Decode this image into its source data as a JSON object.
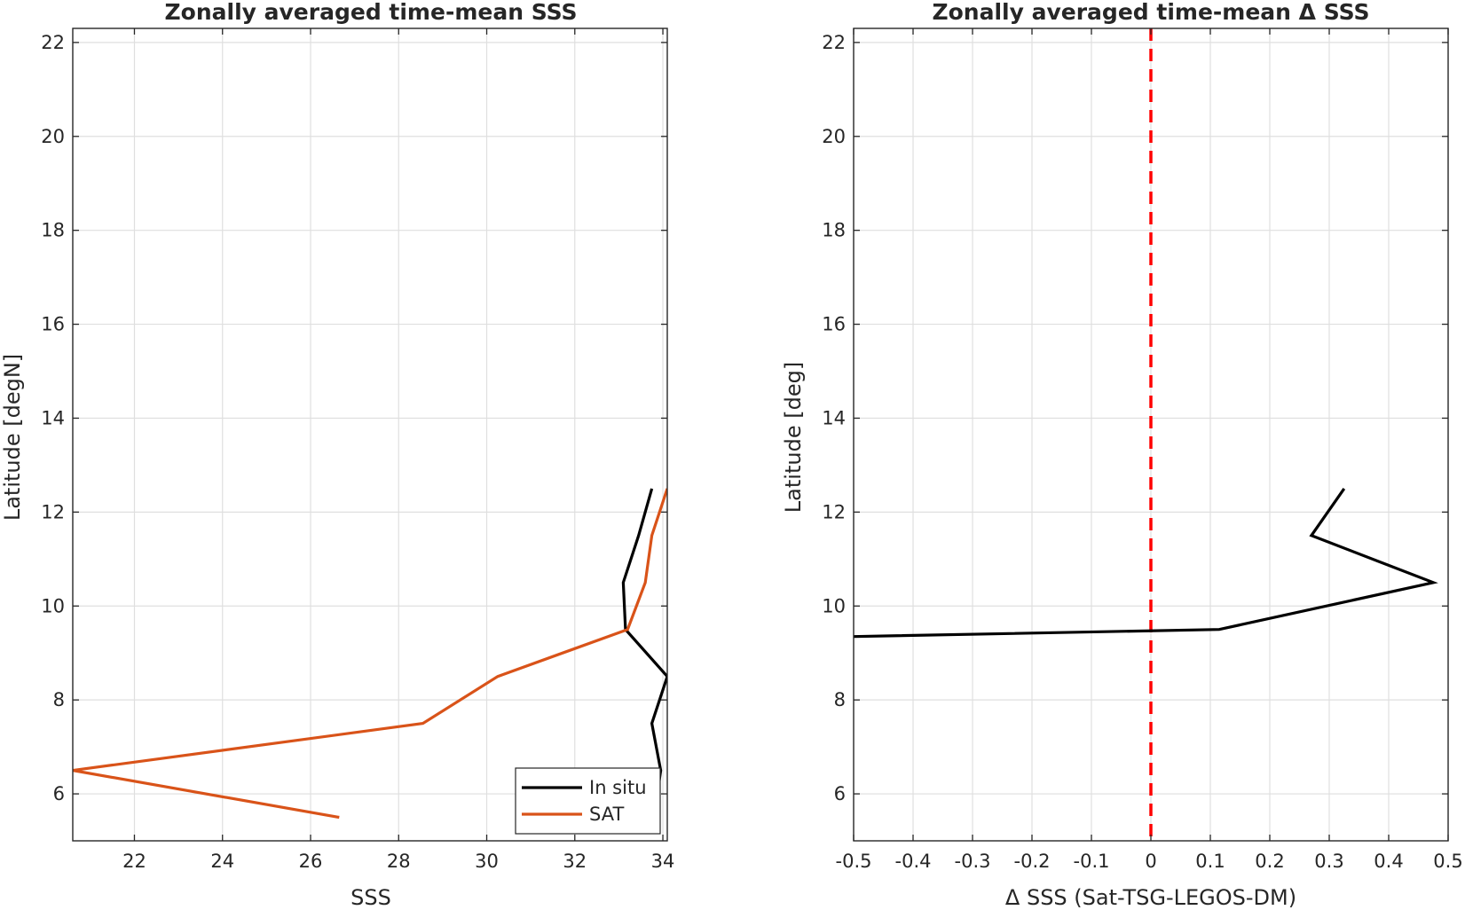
{
  "chart_data": [
    {
      "type": "line",
      "title": "Zonally averaged time-mean SSS",
      "xlabel": "SSS",
      "ylabel": "Latitude [degN]",
      "xlim": [
        20.6,
        34.1
      ],
      "ylim": [
        5,
        22.3
      ],
      "xticks": [
        "22",
        "24",
        "26",
        "28",
        "30",
        "32",
        "34"
      ],
      "xtick_values": [
        22,
        24,
        26,
        28,
        30,
        32,
        34
      ],
      "yticks": [
        "6",
        "8",
        "10",
        "12",
        "14",
        "16",
        "18",
        "20",
        "22"
      ],
      "ytick_values": [
        6,
        8,
        10,
        12,
        14,
        16,
        18,
        20,
        22
      ],
      "grid": true,
      "legend": "bottom-right",
      "series": [
        {
          "name": "In situ",
          "color": "#000000",
          "points": [
            [
              33.75,
              12.5
            ],
            [
              33.45,
              11.5
            ],
            [
              33.1,
              10.5
            ],
            [
              33.15,
              9.5
            ],
            [
              34.1,
              8.5
            ],
            [
              33.75,
              7.5
            ],
            [
              33.95,
              6.5
            ],
            [
              33.8,
              5.5
            ]
          ]
        },
        {
          "name": "SAT",
          "color": "#D95319",
          "points": [
            [
              34.1,
              12.5
            ],
            [
              33.75,
              11.5
            ],
            [
              33.6,
              10.5
            ],
            [
              33.2,
              9.5
            ],
            [
              30.25,
              8.5
            ],
            [
              28.55,
              7.5
            ],
            [
              20.6,
              6.5
            ],
            [
              26.65,
              5.5
            ]
          ]
        }
      ]
    },
    {
      "type": "line",
      "title": "Zonally averaged time-mean Δ SSS",
      "xlabel": "Δ SSS (Sat-TSG-LEGOS-DM)",
      "ylabel": "Latitude [deg]",
      "xlim": [
        -0.5,
        0.5
      ],
      "ylim": [
        5,
        22.3
      ],
      "xticks": [
        "-0.5",
        "-0.4",
        "-0.3",
        "-0.2",
        "-0.1",
        "0",
        "0.1",
        "0.2",
        "0.3",
        "0.4",
        "0.5"
      ],
      "xtick_values": [
        -0.5,
        -0.4,
        -0.3,
        -0.2,
        -0.1,
        0,
        0.1,
        0.2,
        0.3,
        0.4,
        0.5
      ],
      "yticks": [
        "6",
        "8",
        "10",
        "12",
        "14",
        "16",
        "18",
        "20",
        "22"
      ],
      "ytick_values": [
        6,
        8,
        10,
        12,
        14,
        16,
        18,
        20,
        22
      ],
      "grid": true,
      "reference_line": {
        "x": 0,
        "color": "#FF0000",
        "style": "dashed"
      },
      "series": [
        {
          "color": "#000000",
          "points": [
            [
              0.325,
              12.5
            ],
            [
              0.27,
              11.5
            ],
            [
              0.475,
              10.5
            ],
            [
              0.115,
              9.5
            ],
            [
              -0.5,
              9.35
            ]
          ]
        }
      ]
    }
  ]
}
